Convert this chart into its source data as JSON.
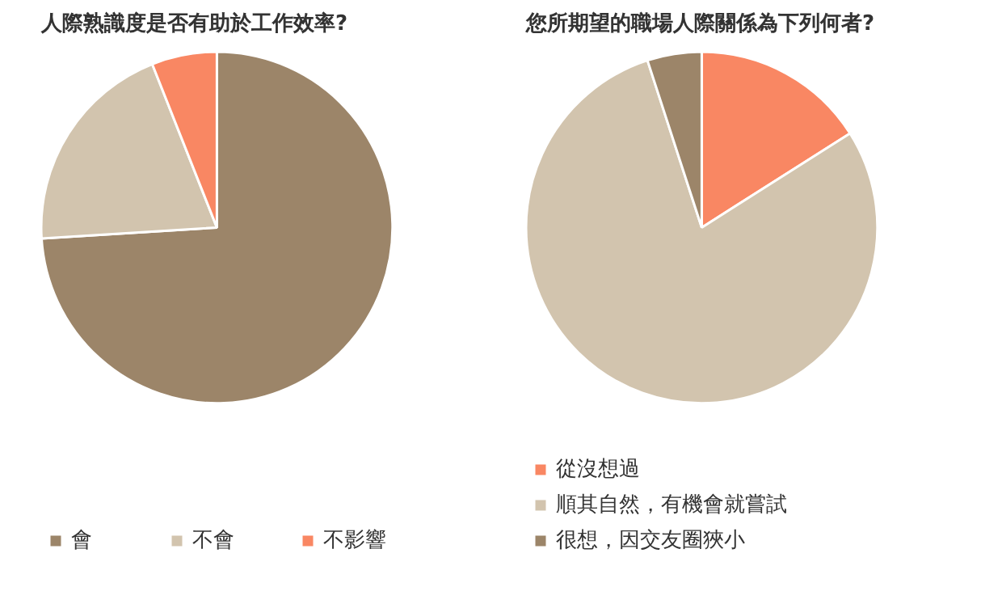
{
  "chart_data": [
    {
      "type": "pie",
      "title": "人際熟識度是否有助於工作效率?",
      "categories": [
        "會",
        "不會",
        "不影響"
      ],
      "values": [
        74,
        20,
        6
      ],
      "colors": [
        "#9c8569",
        "#d2c4ae",
        "#f98763"
      ],
      "legend": "bottom"
    },
    {
      "type": "pie",
      "title": "您所期望的職場人際關係為下列何者?",
      "categories": [
        "從沒想過",
        "順其自然，有機會就嘗試",
        "很想，因交友圈狹小"
      ],
      "values": [
        16,
        79,
        5
      ],
      "colors": [
        "#f98763",
        "#d2c4ae",
        "#9c8569"
      ],
      "legend": "bottom"
    }
  ]
}
